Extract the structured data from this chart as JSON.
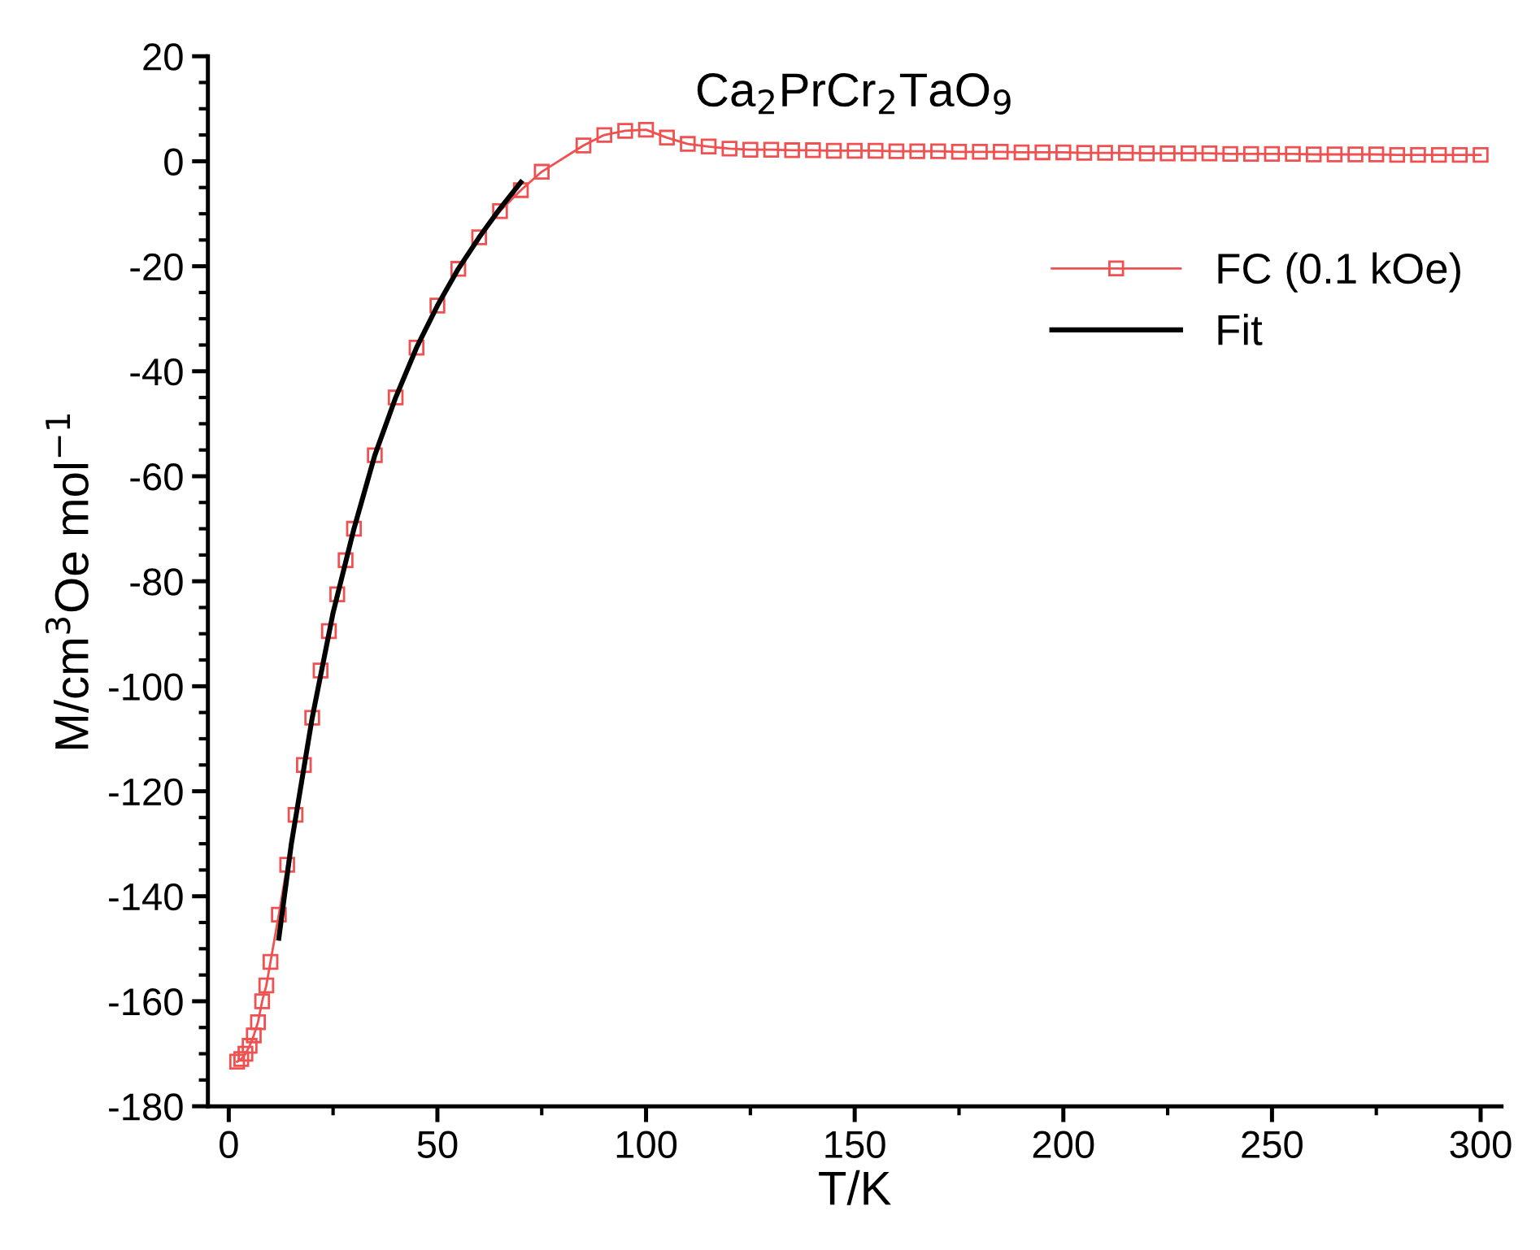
{
  "chart_data": {
    "type": "line",
    "title": "Ca$_{2}$PrCr$_{2}$TaO$_{9}$",
    "xlabel": "T/K",
    "ylabel": "M/cm$^{3}$Oe mol$^{−1}$",
    "xlim": [
      -5,
      305
    ],
    "xticks": [
      0,
      50,
      100,
      150,
      200,
      250,
      300
    ],
    "ylim": [
      -180,
      20
    ],
    "yticks": [
      -180,
      -160,
      -140,
      -120,
      -100,
      -80,
      -60,
      -40,
      -20,
      0,
      20
    ],
    "legend": "top right",
    "grid": false,
    "series": [
      {
        "name": "FC (0.1 kOe)",
        "color": "#f05050",
        "marker": "square",
        "line_style": "solid",
        "x": [
          2,
          3,
          4,
          5,
          6,
          7,
          8,
          9,
          10,
          12,
          14,
          16,
          18,
          20,
          22,
          24,
          26,
          28,
          30,
          35,
          40,
          45,
          50,
          55,
          60,
          65,
          70,
          75,
          85,
          90,
          95,
          100,
          105,
          110,
          115,
          120,
          125,
          130,
          135,
          140,
          145,
          150,
          155,
          160,
          165,
          170,
          175,
          180,
          185,
          190,
          195,
          200,
          205,
          210,
          215,
          220,
          225,
          230,
          235,
          240,
          245,
          250,
          255,
          260,
          265,
          270,
          275,
          280,
          285,
          290,
          295,
          300
        ],
        "values": [
          -171.5,
          -171,
          -170,
          -168.5,
          -166.5,
          -164,
          -160,
          -157,
          -152.5,
          -143.5,
          -134,
          -124.5,
          -115,
          -106,
          -97,
          -89.5,
          -82.5,
          -76,
          -70,
          -56,
          -45,
          -35.5,
          -27.5,
          -20.5,
          -14.5,
          -9.5,
          -5.5,
          -2,
          3,
          5,
          5.8,
          6,
          4.5,
          3.3,
          2.8,
          2.4,
          2.2,
          2.2,
          2.1,
          2.1,
          2,
          2,
          2,
          1.9,
          1.9,
          1.9,
          1.8,
          1.8,
          1.8,
          1.7,
          1.7,
          1.7,
          1.6,
          1.6,
          1.6,
          1.5,
          1.5,
          1.5,
          1.5,
          1.4,
          1.4,
          1.4,
          1.4,
          1.3,
          1.3,
          1.3,
          1.3,
          1.2,
          1.2,
          1.2,
          1.2,
          1.2
        ]
      },
      {
        "name": "Fit",
        "color": "#000000",
        "marker": "none",
        "line_style": "solid",
        "x": [
          12,
          15,
          20,
          25,
          30,
          35,
          40,
          45,
          50,
          55,
          60,
          65,
          70
        ],
        "values": [
          -148,
          -130,
          -106,
          -86,
          -70,
          -56,
          -45,
          -35.5,
          -27.5,
          -20.5,
          -14.5,
          -9,
          -4
        ]
      }
    ]
  }
}
